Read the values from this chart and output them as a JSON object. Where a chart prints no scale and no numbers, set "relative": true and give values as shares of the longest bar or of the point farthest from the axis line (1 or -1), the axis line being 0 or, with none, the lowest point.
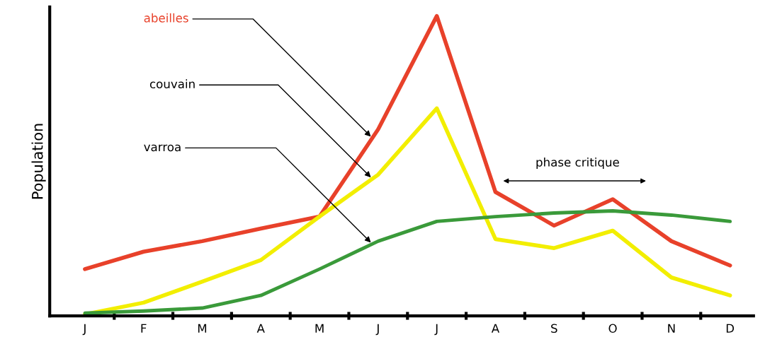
{
  "chart_data": {
    "type": "line",
    "relative": true,
    "ylabel": "Population",
    "tick_labels": "x",
    "grid": false,
    "legend": false,
    "marker": "none",
    "line_style": "solid",
    "categories": [
      "J",
      "F",
      "M",
      "A",
      "M",
      "J",
      "J",
      "A",
      "S",
      "O",
      "N",
      "D"
    ],
    "series": [
      {
        "name": "abeilles",
        "color": "#e8412a",
        "values": [
          0.156,
          0.214,
          0.249,
          0.291,
          0.331,
          0.622,
          1,
          0.413,
          0.301,
          0.389,
          0.249,
          0.168
        ]
      },
      {
        "name": "couvain",
        "color": "#f2ee00",
        "values": [
          0.005,
          0.044,
          0.114,
          0.186,
          0.331,
          0.471,
          0.692,
          0.256,
          0.226,
          0.284,
          0.128,
          0.068
        ]
      },
      {
        "name": "varroa",
        "color": "#3a9a3a",
        "values": [
          0.009,
          0.016,
          0.026,
          0.068,
          0.156,
          0.249,
          0.315,
          0.331,
          0.343,
          0.35,
          0.336,
          0.315
        ]
      }
    ],
    "annotations": [
      "phase critique"
    ]
  }
}
